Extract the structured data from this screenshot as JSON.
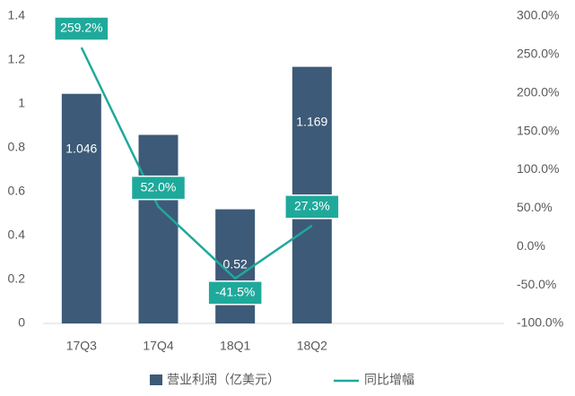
{
  "chart_data": {
    "type": "bar-line",
    "categories": [
      "17Q3",
      "17Q4",
      "18Q1",
      "18Q2",
      null,
      null
    ],
    "series": [
      {
        "name": "营业利润（亿美元）",
        "color": "#3d5a78",
        "values": [
          1.046,
          0.859,
          0.52,
          1.169,
          null,
          null
        ]
      },
      {
        "name": "同比增幅",
        "color": "#1fa99b",
        "axis": "y2",
        "values": [
          259.2,
          52.0,
          -41.5,
          27.3,
          null,
          null
        ],
        "value_labels": [
          "259.2%",
          "52.0%",
          "-41.5%",
          "27.3%",
          null,
          null
        ]
      }
    ],
    "ylim": [
      0,
      1.4
    ],
    "yticks": [
      0,
      0.2,
      0.4,
      0.6,
      0.8,
      1,
      1.2,
      1.4
    ],
    "y2lim": [
      -100,
      300
    ],
    "y2ticks": [
      {
        "value": -100,
        "label": "-100.0%"
      },
      {
        "value": -50,
        "label": "-50.0%"
      },
      {
        "value": 0,
        "label": "0.0%"
      },
      {
        "value": 50,
        "label": "50.0%"
      },
      {
        "value": 100,
        "label": "100.0%"
      },
      {
        "value": 150,
        "label": "150.0%"
      },
      {
        "value": 200,
        "label": "200.0%"
      },
      {
        "value": 250,
        "label": "250.0%"
      },
      {
        "value": 300,
        "label": "300.0%"
      }
    ],
    "legend": "bottom"
  }
}
